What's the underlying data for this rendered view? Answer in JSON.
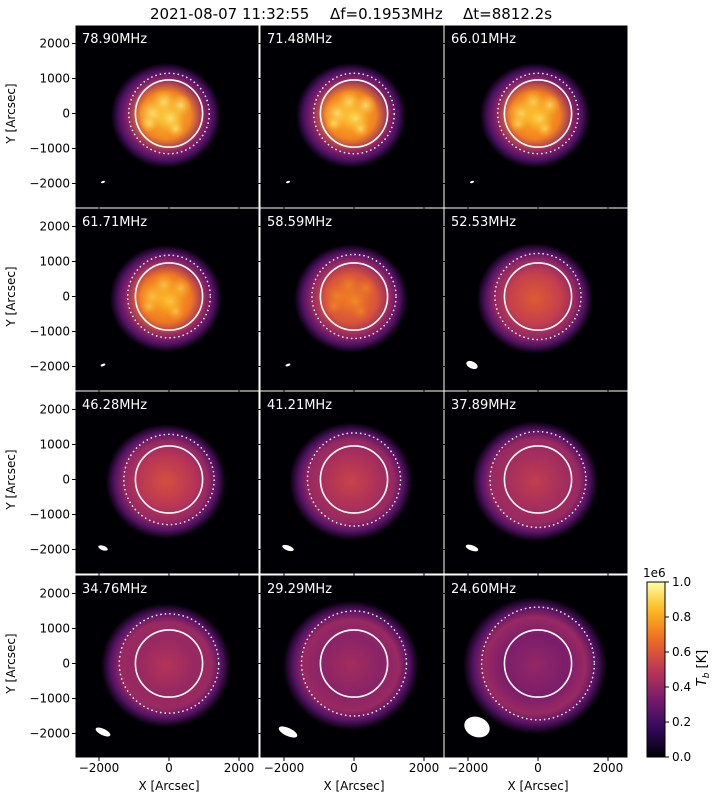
{
  "header": {
    "timestamp": "2021-08-07 11:32:55",
    "df_label": "Δf=0.1953MHz",
    "dt_label": "Δt=8812.2s"
  },
  "axes": {
    "xlabel": "X [Arcsec]",
    "ylabel": "Y [Arcsec]",
    "xticks": [
      "−2000",
      "0",
      "2000"
    ],
    "yticks": [
      "2000",
      "1000",
      "0",
      "−1000",
      "−2000"
    ]
  },
  "colorbar": {
    "label": "T_b [K]",
    "exponent": "1e6",
    "ticks": [
      "0.0",
      "0.2",
      "0.4",
      "0.6",
      "0.8",
      "1.0"
    ],
    "colormap": "inferno",
    "colors": [
      "#000004",
      "#320a5e",
      "#781c6d",
      "#bc3754",
      "#ed6925",
      "#fbb61a",
      "#fcffa4"
    ]
  },
  "panels": [
    {
      "freq": "78.90MHz",
      "peak": 0.86,
      "halo": 0.42,
      "dotted_r_arcsec": 1150,
      "beam": {
        "rx": 2,
        "ry": 1,
        "rot": -20
      },
      "texture": 0.8
    },
    {
      "freq": "71.48MHz",
      "peak": 0.85,
      "halo": 0.42,
      "dotted_r_arcsec": 1150,
      "beam": {
        "rx": 2,
        "ry": 1,
        "rot": -20
      },
      "texture": 0.8
    },
    {
      "freq": "66.01MHz",
      "peak": 0.84,
      "halo": 0.42,
      "dotted_r_arcsec": 1150,
      "beam": {
        "rx": 2,
        "ry": 1,
        "rot": -20
      },
      "texture": 0.75
    },
    {
      "freq": "61.71MHz",
      "peak": 0.82,
      "halo": 0.44,
      "dotted_r_arcsec": 1180,
      "beam": {
        "rx": 2.5,
        "ry": 1.2,
        "rot": -20
      },
      "texture": 0.6
    },
    {
      "freq": "58.59MHz",
      "peak": 0.7,
      "halo": 0.44,
      "dotted_r_arcsec": 1200,
      "beam": {
        "rx": 2.5,
        "ry": 1.2,
        "rot": -20
      },
      "texture": 0.45
    },
    {
      "freq": "52.53MHz",
      "peak": 0.62,
      "halo": 0.45,
      "dotted_r_arcsec": 1230,
      "beam": {
        "rx": 6,
        "ry": 3.5,
        "rot": 25
      },
      "texture": 0.2
    },
    {
      "freq": "46.28MHz",
      "peak": 0.58,
      "halo": 0.45,
      "dotted_r_arcsec": 1290,
      "beam": {
        "rx": 5,
        "ry": 2.2,
        "rot": 20
      },
      "texture": 0.15
    },
    {
      "freq": "41.21MHz",
      "peak": 0.54,
      "halo": 0.45,
      "dotted_r_arcsec": 1330,
      "beam": {
        "rx": 6,
        "ry": 2.5,
        "rot": 20
      },
      "texture": 0.12
    },
    {
      "freq": "37.89MHz",
      "peak": 0.52,
      "halo": 0.46,
      "dotted_r_arcsec": 1370,
      "beam": {
        "rx": 6.5,
        "ry": 2.7,
        "rot": 20
      },
      "texture": 0.1
    },
    {
      "freq": "34.76MHz",
      "peak": 0.48,
      "halo": 0.46,
      "dotted_r_arcsec": 1420,
      "beam": {
        "rx": 8,
        "ry": 3.2,
        "rot": 25
      },
      "texture": 0.06
    },
    {
      "freq": "29.29MHz",
      "peak": 0.44,
      "halo": 0.46,
      "dotted_r_arcsec": 1500,
      "beam": {
        "rx": 10,
        "ry": 4,
        "rot": 25
      },
      "texture": 0.04
    },
    {
      "freq": "24.60MHz",
      "peak": 0.4,
      "halo": 0.46,
      "dotted_r_arcsec": 1610,
      "beam": {
        "rx": 13,
        "ry": 10,
        "rot": 20
      },
      "texture": 0.02
    }
  ]
}
